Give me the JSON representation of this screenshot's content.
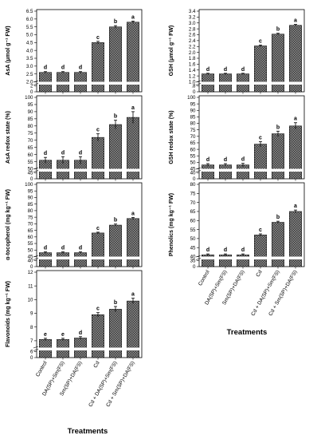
{
  "figure": {
    "x_title_left": "Treatments",
    "x_title_right": "Treatments"
  },
  "chart_data": [
    {
      "type": "bar",
      "ylabel": "AsA (μmol g⁻¹ FW)",
      "categories": [
        "Control",
        "DA(SP)+Sm(FS)",
        "Sm(SP)+DA(FS)",
        "Cd",
        "Cd + DA(SP)+Sm(FS)",
        "Cd + Sm(SP)+DA(FS)"
      ],
      "values": [
        2.6,
        2.6,
        2.6,
        4.5,
        5.5,
        5.8
      ],
      "errors": [
        0.05,
        0.05,
        0.05,
        0.08,
        0.08,
        0.07
      ],
      "letters": [
        "d",
        "d",
        "d",
        "c",
        "b",
        "a"
      ],
      "ylim": [
        2.0,
        6.5
      ],
      "yticks": [
        2.0,
        2.5,
        3.0,
        3.5,
        4.0,
        4.5,
        5.0,
        5.5,
        6.0,
        6.5
      ],
      "ytick_labels": [
        "2.0",
        "2.5",
        "3.0",
        "3.5",
        "4.0",
        "4.5",
        "5.0",
        "5.5",
        "6.0",
        "6.5"
      ],
      "low_ticks": [
        0,
        2
      ],
      "low_tick_labels": [
        "0",
        "2"
      ]
    },
    {
      "type": "bar",
      "ylabel": "AsA redox state (%)",
      "categories": [
        "Control",
        "DA(SP)+Sm(FS)",
        "Sm(SP)+DA(FS)",
        "Cd",
        "Cd + DA(SP)+Sm(FS)",
        "Cd + Sm(SP)+DA(FS)"
      ],
      "values": [
        56,
        56,
        56,
        72,
        81,
        86
      ],
      "errors": [
        2,
        2.5,
        2.5,
        2.5,
        3,
        4
      ],
      "letters": [
        "d",
        "d",
        "d",
        "c",
        "b",
        "a"
      ],
      "ylim": [
        50,
        100
      ],
      "yticks": [
        50,
        55,
        60,
        65,
        70,
        75,
        80,
        85,
        90,
        95,
        100
      ],
      "ytick_labels": [
        "50",
        "55",
        "60",
        "65",
        "70",
        "75",
        "80",
        "85",
        "90",
        "95",
        "100"
      ],
      "low_ticks": [
        0,
        45
      ],
      "low_tick_labels": [
        "0",
        "45"
      ]
    },
    {
      "type": "bar",
      "ylabel": "α-tocopherol (mg kg⁻¹ FW)",
      "categories": [
        "Control",
        "DA(SP)+Sm(FS)",
        "Sm(SP)+DA(FS)",
        "Cd",
        "Cd + DA(SP)+Sm(FS)",
        "Cd + Sm(SP)+DA(FS)"
      ],
      "values": [
        48,
        48,
        48,
        63,
        69,
        74
      ],
      "errors": [
        0.6,
        0.6,
        0.6,
        0.6,
        0.8,
        0.8
      ],
      "letters": [
        "d",
        "d",
        "d",
        "c",
        "b",
        "a"
      ],
      "ylim": [
        45,
        100
      ],
      "yticks": [
        45,
        50,
        55,
        60,
        65,
        70,
        75,
        80,
        85,
        90,
        95,
        100
      ],
      "ytick_labels": [
        "45",
        "50",
        "55",
        "60",
        "65",
        "70",
        "75",
        "80",
        "85",
        "90",
        "95",
        "100"
      ],
      "low_ticks": [
        0,
        40
      ],
      "low_tick_labels": [
        "0",
        "40"
      ]
    },
    {
      "type": "bar",
      "ylabel": "Flavonoids (mg kg⁻¹ FW)",
      "categories": [
        "Control",
        "DA(SP)+Sm(FS)",
        "Sm(SP)+DA(FS)",
        "Cd",
        "Cd + DA(SP)+Sm(FS)",
        "Cd + Sm(SP)+DA(FS)"
      ],
      "values": [
        7.1,
        7.1,
        7.2,
        8.9,
        9.3,
        9.9
      ],
      "errors": [
        0.08,
        0.08,
        0.1,
        0.15,
        0.2,
        0.2
      ],
      "letters": [
        "e",
        "e",
        "d",
        "c",
        "b",
        "a"
      ],
      "ylim": [
        6.5,
        12
      ],
      "yticks": [
        7,
        8,
        9,
        10,
        11,
        12
      ],
      "ytick_labels": [
        "7",
        "8",
        "9",
        "10",
        "11",
        "12"
      ],
      "low_ticks": [
        0,
        6
      ],
      "low_tick_labels": [
        "0",
        "6"
      ]
    },
    {
      "type": "bar",
      "ylabel": "GSH (μmol g⁻¹ FW)",
      "categories": [
        "Control",
        "DA(SP)+Sm(FS)",
        "Sm(SP)+DA(FS)",
        "Cd",
        "Cd + DA(SP)+Sm(FS)",
        "Cd + Sm(SP)+DA(FS)"
      ],
      "values": [
        1.27,
        1.27,
        1.27,
        2.22,
        2.62,
        2.92
      ],
      "errors": [
        0.02,
        0.02,
        0.02,
        0.03,
        0.03,
        0.03
      ],
      "letters": [
        "d",
        "d",
        "d",
        "c",
        "b",
        "a"
      ],
      "ylim": [
        1.0,
        3.4
      ],
      "yticks": [
        1.0,
        1.2,
        1.4,
        1.6,
        1.8,
        2.0,
        2.2,
        2.4,
        2.6,
        2.8,
        3.0,
        3.2,
        3.4
      ],
      "ytick_labels": [
        "1.0",
        "1.2",
        "1.4",
        "1.6",
        "1.8",
        "2.0",
        "2.2",
        "2.4",
        "2.6",
        "2.8",
        "3.0",
        "3.2",
        "3.4"
      ],
      "low_ticks": [
        0,
        0.8
      ],
      "low_tick_labels": [
        "0",
        ".8"
      ]
    },
    {
      "type": "bar",
      "ylabel": "GSH redox state (%)",
      "categories": [
        "Control",
        "DA(SP)+Sm(FS)",
        "Sm(SP)+DA(FS)",
        "Cd",
        "Cd + DA(SP)+Sm(FS)",
        "Cd + Sm(SP)+DA(FS)"
      ],
      "values": [
        48,
        48,
        48,
        64,
        72,
        78
      ],
      "errors": [
        1,
        1,
        1.2,
        2,
        2,
        2.5
      ],
      "letters": [
        "d",
        "d",
        "d",
        "c",
        "b",
        "a"
      ],
      "ylim": [
        45,
        100
      ],
      "yticks": [
        45,
        50,
        55,
        60,
        65,
        70,
        75,
        80,
        85,
        90,
        95,
        100
      ],
      "ytick_labels": [
        "45",
        "50",
        "55",
        "60",
        "65",
        "70",
        "75",
        "80",
        "85",
        "90",
        "95",
        "100"
      ],
      "low_ticks": [
        0,
        40
      ],
      "low_tick_labels": [
        "0",
        "40"
      ]
    },
    {
      "type": "bar",
      "ylabel": "Phenolics (mg kg⁻¹ FW)",
      "categories": [
        "Control",
        "DA(SP)+Sm(FS)",
        "Sm(SP)+DA(FS)",
        "Cd",
        "Cd + DA(SP)+Sm(FS)",
        "Cd + Sm(SP)+DA(FS)"
      ],
      "values": [
        41,
        41,
        41,
        52,
        59,
        65
      ],
      "errors": [
        0.5,
        0.5,
        0.5,
        0.6,
        0.6,
        0.8
      ],
      "letters": [
        "d",
        "d",
        "d",
        "c",
        "b",
        "a"
      ],
      "ylim": [
        40,
        80
      ],
      "yticks": [
        40,
        45,
        50,
        55,
        60,
        65,
        70,
        75,
        80
      ],
      "ytick_labels": [
        "40",
        "45",
        "50",
        "55",
        "60",
        "65",
        "70",
        "75",
        "80"
      ],
      "low_ticks": [
        0,
        35
      ],
      "low_tick_labels": [
        "0",
        "35"
      ]
    }
  ]
}
